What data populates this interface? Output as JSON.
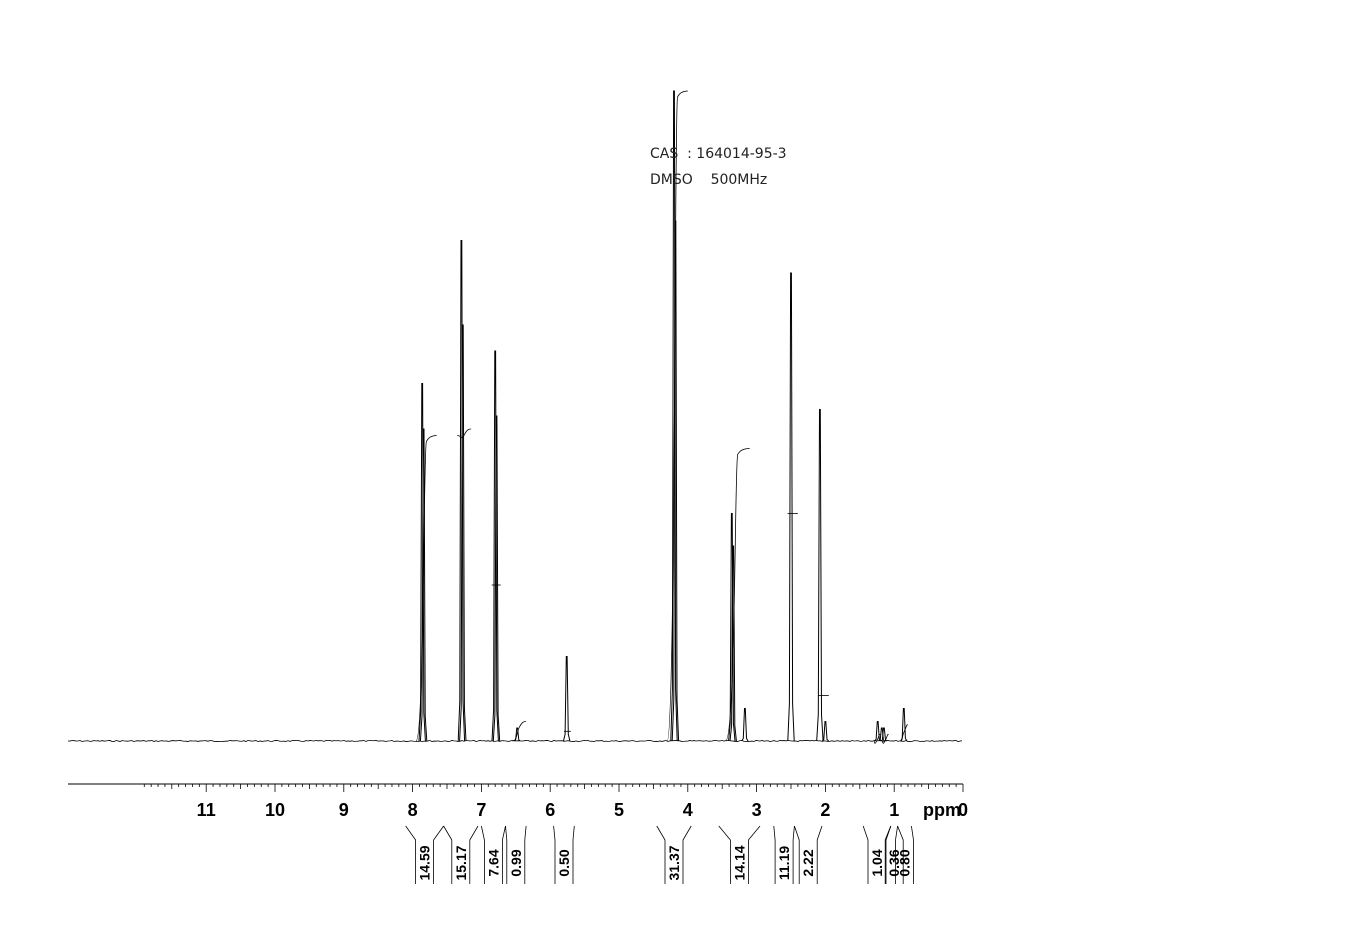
{
  "annotations": {
    "line1": "CAS  : 164014-95-3",
    "line2": "DMSO    500MHz"
  },
  "chart_data": {
    "type": "line",
    "title": "",
    "xlabel": "ppm",
    "ylabel": "",
    "xlim": [
      12.0,
      -1.0
    ],
    "x_reversed": true,
    "ticks": [
      "11",
      "10",
      "9",
      "8",
      "7",
      "6",
      "5",
      "4",
      "3",
      "2",
      "1",
      "0"
    ],
    "tick_values": [
      11,
      10,
      9,
      8,
      7,
      6,
      5,
      4,
      3,
      2,
      1,
      0
    ],
    "grid": false,
    "peaks": [
      {
        "ppm": 7.86,
        "height": 0.55
      },
      {
        "ppm": 7.84,
        "height": 0.48
      },
      {
        "ppm": 7.29,
        "height": 0.77
      },
      {
        "ppm": 7.27,
        "height": 0.64
      },
      {
        "ppm": 6.8,
        "height": 0.6
      },
      {
        "ppm": 6.78,
        "height": 0.5
      },
      {
        "ppm": 6.48,
        "height": 0.02
      },
      {
        "ppm": 5.76,
        "height": 0.13
      },
      {
        "ppm": 4.2,
        "height": 1.0
      },
      {
        "ppm": 4.18,
        "height": 0.8
      },
      {
        "ppm": 3.36,
        "height": 0.35
      },
      {
        "ppm": 3.34,
        "height": 0.3
      },
      {
        "ppm": 3.17,
        "height": 0.05
      },
      {
        "ppm": 2.5,
        "height": 0.72
      },
      {
        "ppm": 2.08,
        "height": 0.51
      },
      {
        "ppm": 2.0,
        "height": 0.03
      },
      {
        "ppm": 1.24,
        "height": 0.03
      },
      {
        "ppm": 1.18,
        "height": 0.02
      },
      {
        "ppm": 1.15,
        "height": 0.02
      },
      {
        "ppm": 0.86,
        "height": 0.05
      }
    ],
    "integrals": [
      {
        "from": 7.95,
        "to": 7.65,
        "rise_from": 0.0,
        "rise_to": 0.47,
        "value": "14.59"
      },
      {
        "from": 7.35,
        "to": 7.15,
        "rise_from": 0.47,
        "rise_to": 0.48,
        "value": "15.17"
      },
      {
        "from": 6.85,
        "to": 6.72,
        "rise_from": 0.24,
        "rise_to": 0.24,
        "value": "7.64"
      },
      {
        "from": 6.55,
        "to": 6.35,
        "rise_from": 0.0,
        "rise_to": 0.03,
        "value": "0.99"
      },
      {
        "from": 5.8,
        "to": 5.7,
        "rise_from": 0.015,
        "rise_to": 0.015,
        "value": "0.50"
      },
      {
        "from": 4.3,
        "to": 4.0,
        "rise_from": 0.0,
        "rise_to": 1.0,
        "value": "31.37"
      },
      {
        "from": 3.45,
        "to": 3.1,
        "rise_from": 0.0,
        "rise_to": 0.45,
        "value": "14.14"
      },
      {
        "from": 2.55,
        "to": 2.4,
        "rise_from": 0.35,
        "rise_to": 0.35,
        "value": "11.19"
      },
      {
        "from": 2.1,
        "to": 1.95,
        "rise_from": 0.07,
        "rise_to": 0.07,
        "value": "2.22"
      },
      {
        "from": 1.3,
        "to": 1.2,
        "rise_from": 0.0,
        "rise_to": 0.01,
        "value": "1.04"
      },
      {
        "from": 1.18,
        "to": 1.08,
        "rise_from": 0.0,
        "rise_to": 0.01,
        "value": "0.36"
      },
      {
        "from": 0.9,
        "to": 0.8,
        "rise_from": 0.0,
        "rise_to": 0.025,
        "value": "0.80"
      }
    ],
    "integral_brackets": [
      {
        "from": 8.1,
        "to": 7.55,
        "value": "14.59"
      },
      {
        "from": 7.55,
        "to": 7.05,
        "value": "15.17"
      },
      {
        "from": 7.0,
        "to": 6.65,
        "value": "7.64"
      },
      {
        "from": 6.65,
        "to": 6.35,
        "value": "0.99"
      },
      {
        "from": 5.95,
        "to": 5.65,
        "value": "0.50"
      },
      {
        "from": 4.45,
        "to": 3.95,
        "value": "31.37"
      },
      {
        "from": 3.55,
        "to": 2.95,
        "value": "14.14"
      },
      {
        "from": 2.75,
        "to": 2.45,
        "value": "11.19"
      },
      {
        "from": 2.45,
        "to": 2.05,
        "value": "2.22"
      },
      {
        "from": 1.45,
        "to": 1.05,
        "value": "1.04"
      },
      {
        "from": 1.05,
        "to": 0.95,
        "value": "0.36"
      },
      {
        "from": 0.95,
        "to": 0.75,
        "value": "0.80"
      }
    ]
  }
}
